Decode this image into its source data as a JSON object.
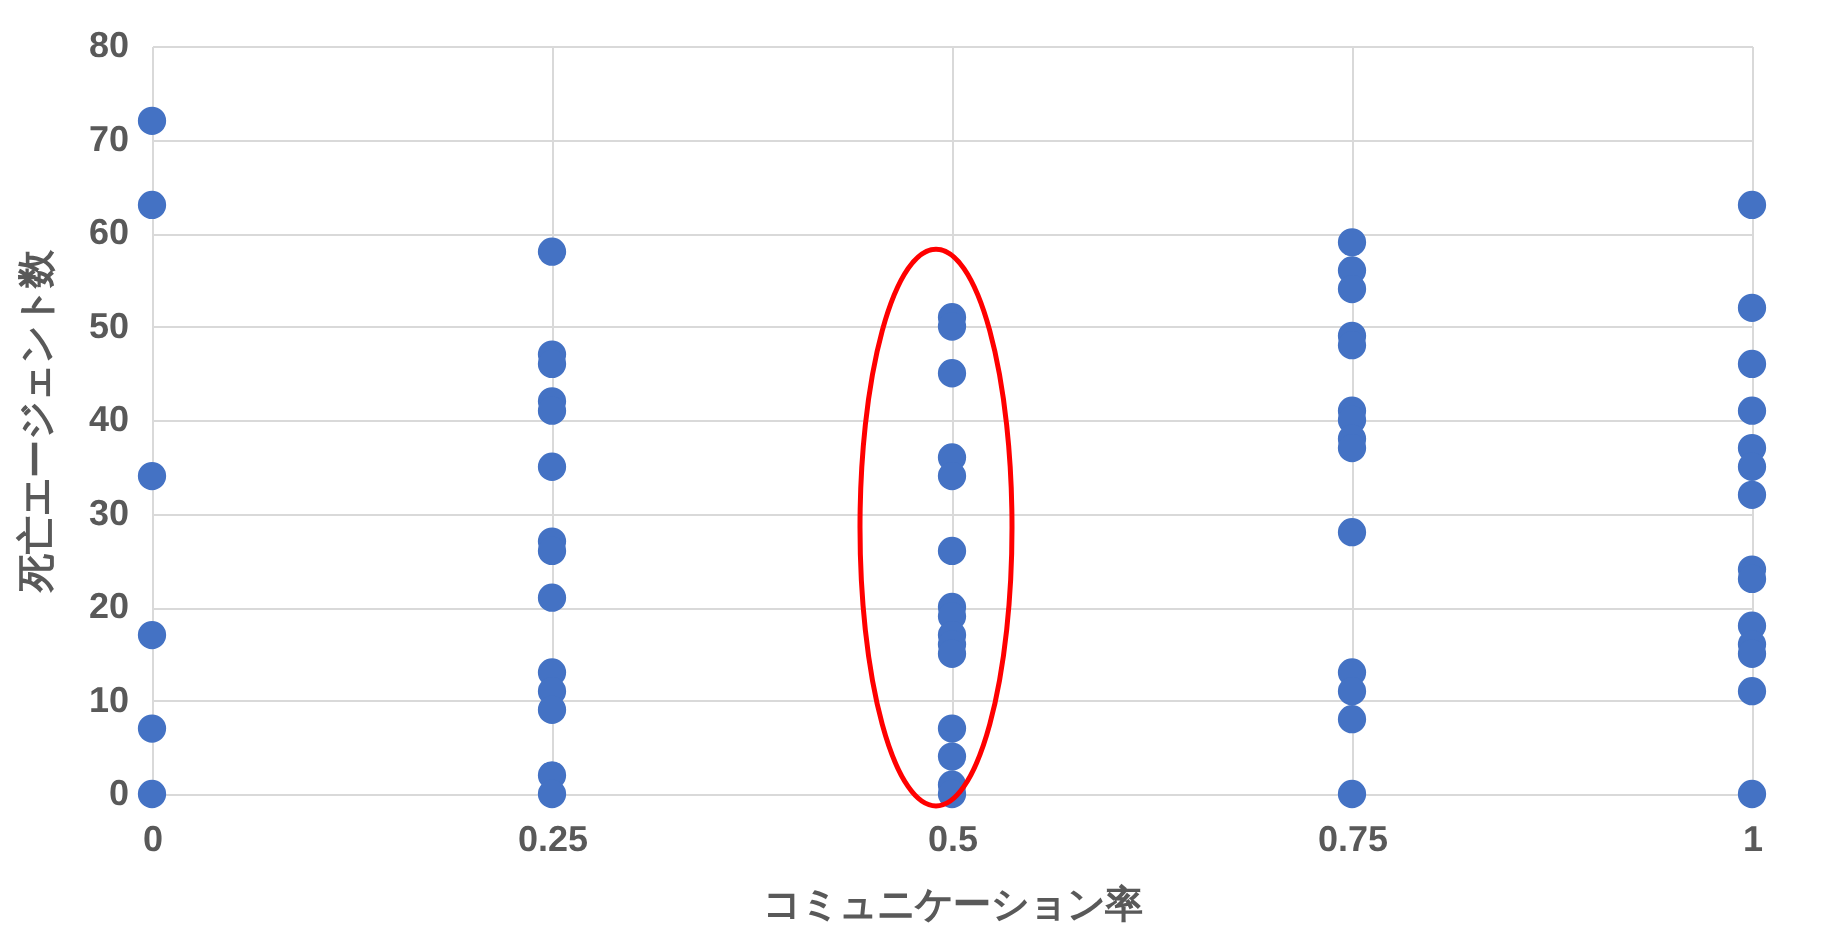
{
  "chart_data": {
    "type": "scatter",
    "xlabel": "コミュニケーション率",
    "ylabel": "死亡エージェント数",
    "x": [
      0,
      0,
      0,
      0,
      0,
      0,
      0.25,
      0.25,
      0.25,
      0.25,
      0.25,
      0.25,
      0.25,
      0.25,
      0.25,
      0.25,
      0.25,
      0.25,
      0.25,
      0.25,
      0.5,
      0.5,
      0.5,
      0.5,
      0.5,
      0.5,
      0.5,
      0.5,
      0.5,
      0.5,
      0.5,
      0.5,
      0.5,
      0.5,
      0.5,
      0.75,
      0.75,
      0.75,
      0.75,
      0.75,
      0.75,
      0.75,
      0.75,
      0.75,
      0.75,
      0.75,
      0.75,
      0.75,
      0.75,
      1,
      1,
      1,
      1,
      1,
      1,
      1,
      1,
      1,
      1,
      1,
      1,
      1,
      1
    ],
    "values": [
      72,
      63,
      34,
      17,
      7,
      0,
      58,
      47,
      46,
      42,
      41,
      35,
      27,
      26,
      21,
      13,
      11,
      9,
      2,
      0,
      51,
      50,
      45,
      36,
      34,
      26,
      20,
      19,
      17,
      16,
      15,
      7,
      4,
      1,
      0,
      59,
      56,
      54,
      49,
      48,
      41,
      40,
      38,
      37,
      28,
      13,
      11,
      8,
      0,
      63,
      52,
      46,
      41,
      37,
      35,
      32,
      24,
      23,
      18,
      16,
      15,
      11,
      0
    ],
    "color": "#4472c4",
    "marker": "circle",
    "grid": true,
    "xlim": [
      0,
      1
    ],
    "xticks": [
      0,
      0.25,
      0.5,
      0.75,
      1
    ],
    "ylim": [
      0,
      80
    ],
    "yticks": [
      0,
      10,
      20,
      30,
      40,
      50,
      60,
      70,
      80
    ]
  }
}
